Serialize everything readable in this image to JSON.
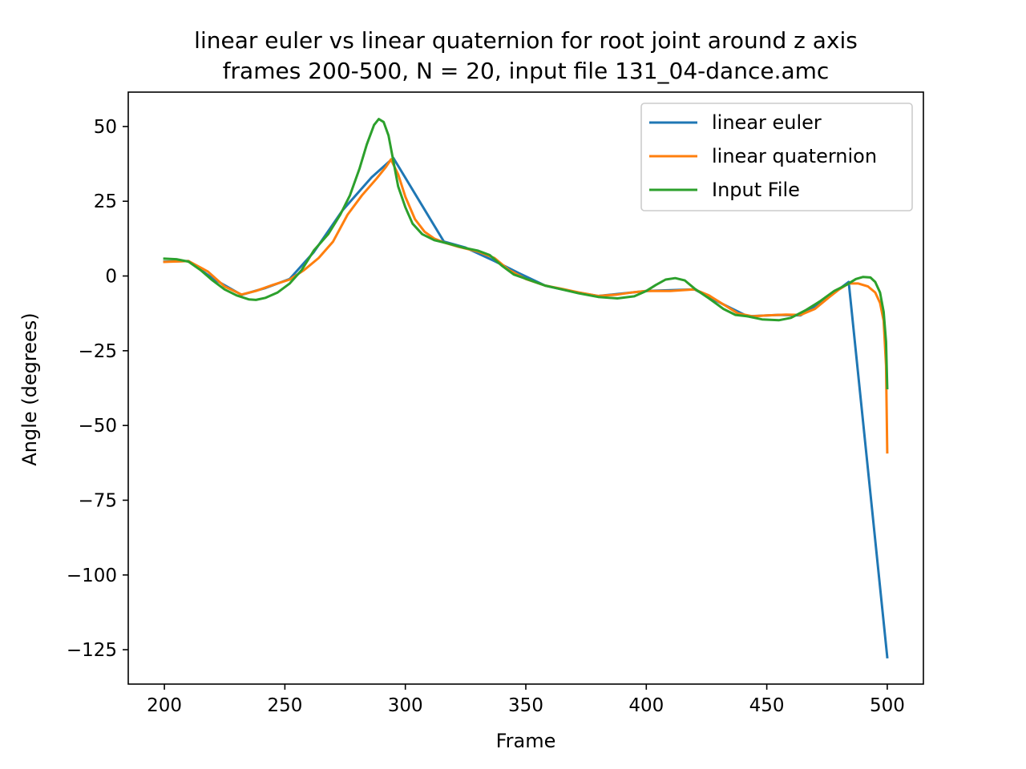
{
  "chart_data": {
    "type": "line",
    "title_lines": [
      "linear euler vs linear quaternion for root joint around z axis",
      "frames 200-500, N = 20, input file 131_04-dance.amc"
    ],
    "xlabel": "Frame",
    "ylabel": "Angle (degrees)",
    "xlim": [
      185,
      515
    ],
    "ylim": [
      -136.5,
      61.5
    ],
    "xticks": [
      200,
      250,
      300,
      350,
      400,
      450,
      500
    ],
    "xtick_labels": [
      "200",
      "250",
      "300",
      "350",
      "400",
      "450",
      "500"
    ],
    "yticks": [
      50,
      25,
      0,
      -25,
      -50,
      -75,
      -100,
      -125
    ],
    "ytick_labels": [
      "50",
      "25",
      "0",
      "−25",
      "−50",
      "−75",
      "−100",
      "−125"
    ],
    "grid": false,
    "legend_position": "top-right",
    "series": [
      {
        "name": "linear euler",
        "color": "#1f77b4",
        "points": [
          [
            200,
            4.8
          ],
          [
            210,
            5.0
          ],
          [
            220,
            -0.8
          ],
          [
            232,
            -6.3
          ],
          [
            242,
            -4.0
          ],
          [
            252,
            -1.0
          ],
          [
            262,
            8.0
          ],
          [
            274,
            22.0
          ],
          [
            286,
            33.0
          ],
          [
            295,
            39.5
          ],
          [
            316,
            11.5
          ],
          [
            325,
            9.5
          ],
          [
            337,
            5.0
          ],
          [
            347,
            1.0
          ],
          [
            358,
            -3.2
          ],
          [
            368,
            -5.0
          ],
          [
            380,
            -6.7
          ],
          [
            400,
            -5.0
          ],
          [
            420,
            -4.5
          ],
          [
            432,
            -9.5
          ],
          [
            442,
            -13.5
          ],
          [
            455,
            -13.0
          ],
          [
            464,
            -13.2
          ],
          [
            474,
            -8.0
          ],
          [
            484,
            -2.0
          ],
          [
            500,
            -127.5
          ]
        ]
      },
      {
        "name": "linear quaternion",
        "color": "#ff7f0e",
        "points": [
          [
            200,
            4.7
          ],
          [
            210,
            5.0
          ],
          [
            218,
            1.5
          ],
          [
            225,
            -3.5
          ],
          [
            232,
            -6.2
          ],
          [
            238,
            -5.0
          ],
          [
            245,
            -3.0
          ],
          [
            252,
            -1.2
          ],
          [
            258,
            2.0
          ],
          [
            264,
            6.0
          ],
          [
            270,
            11.5
          ],
          [
            276,
            20.5
          ],
          [
            282,
            27.0
          ],
          [
            288,
            32.5
          ],
          [
            292,
            36.5
          ],
          [
            294,
            39.0
          ],
          [
            297,
            34.0
          ],
          [
            300,
            26.5
          ],
          [
            304,
            19.0
          ],
          [
            308,
            14.8
          ],
          [
            312,
            12.5
          ],
          [
            316,
            11.2
          ],
          [
            322,
            9.8
          ],
          [
            330,
            8.2
          ],
          [
            337,
            6.0
          ],
          [
            343,
            2.0
          ],
          [
            350,
            -1.0
          ],
          [
            358,
            -3.2
          ],
          [
            365,
            -4.3
          ],
          [
            372,
            -5.5
          ],
          [
            380,
            -6.7
          ],
          [
            388,
            -6.2
          ],
          [
            395,
            -5.4
          ],
          [
            400,
            -5.0
          ],
          [
            410,
            -5.0
          ],
          [
            420,
            -4.5
          ],
          [
            426,
            -6.5
          ],
          [
            432,
            -9.5
          ],
          [
            438,
            -12.5
          ],
          [
            444,
            -13.5
          ],
          [
            450,
            -13.2
          ],
          [
            458,
            -12.9
          ],
          [
            464,
            -13.0
          ],
          [
            470,
            -11.0
          ],
          [
            476,
            -7.0
          ],
          [
            480,
            -4.5
          ],
          [
            484,
            -2.5
          ],
          [
            488,
            -2.5
          ],
          [
            492,
            -3.5
          ],
          [
            495,
            -5.5
          ],
          [
            497,
            -9.0
          ],
          [
            498.5,
            -15.0
          ],
          [
            499.5,
            -30.0
          ],
          [
            500,
            -59.0
          ]
        ]
      },
      {
        "name": "Input File",
        "color": "#2ca02c",
        "points": [
          [
            200,
            5.8
          ],
          [
            205,
            5.6
          ],
          [
            210,
            4.8
          ],
          [
            215,
            2.0
          ],
          [
            220,
            -1.5
          ],
          [
            225,
            -4.5
          ],
          [
            230,
            -6.5
          ],
          [
            235,
            -7.8
          ],
          [
            238,
            -8.0
          ],
          [
            242,
            -7.3
          ],
          [
            247,
            -5.5
          ],
          [
            252,
            -2.5
          ],
          [
            257,
            2.0
          ],
          [
            262,
            8.5
          ],
          [
            268,
            14.0
          ],
          [
            273,
            20.5
          ],
          [
            277,
            27.0
          ],
          [
            281,
            36.0
          ],
          [
            284,
            44.0
          ],
          [
            287,
            50.5
          ],
          [
            289,
            52.5
          ],
          [
            291,
            51.5
          ],
          [
            293,
            47.0
          ],
          [
            295,
            38.5
          ],
          [
            297,
            30.0
          ],
          [
            300,
            23.0
          ],
          [
            303,
            17.5
          ],
          [
            307,
            14.0
          ],
          [
            312,
            12.0
          ],
          [
            318,
            10.8
          ],
          [
            324,
            9.5
          ],
          [
            330,
            8.5
          ],
          [
            335,
            7.0
          ],
          [
            340,
            3.5
          ],
          [
            345,
            0.5
          ],
          [
            352,
            -1.5
          ],
          [
            358,
            -3.2
          ],
          [
            365,
            -4.5
          ],
          [
            372,
            -5.8
          ],
          [
            380,
            -7.0
          ],
          [
            388,
            -7.5
          ],
          [
            395,
            -6.8
          ],
          [
            400,
            -5.0
          ],
          [
            404,
            -3.0
          ],
          [
            408,
            -1.2
          ],
          [
            412,
            -0.7
          ],
          [
            416,
            -1.5
          ],
          [
            420,
            -4.2
          ],
          [
            426,
            -7.5
          ],
          [
            432,
            -11.0
          ],
          [
            437,
            -13.0
          ],
          [
            442,
            -13.5
          ],
          [
            448,
            -14.5
          ],
          [
            455,
            -14.8
          ],
          [
            460,
            -14.0
          ],
          [
            466,
            -11.5
          ],
          [
            472,
            -8.5
          ],
          [
            478,
            -5.0
          ],
          [
            483,
            -3.0
          ],
          [
            487,
            -1.0
          ],
          [
            490,
            -0.3
          ],
          [
            493,
            -0.5
          ],
          [
            495,
            -2.0
          ],
          [
            497,
            -5.5
          ],
          [
            498.5,
            -12.0
          ],
          [
            499.5,
            -22.0
          ],
          [
            500,
            -37.5
          ]
        ]
      }
    ]
  }
}
